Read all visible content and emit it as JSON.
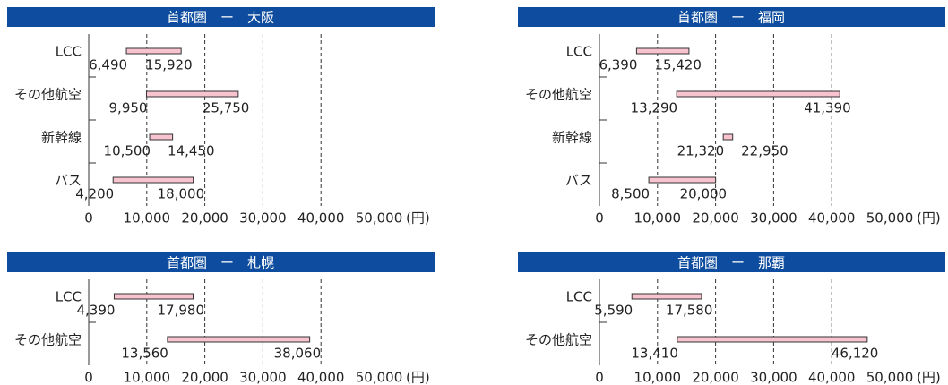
{
  "chart_data": [
    {
      "type": "range",
      "title": "首都圏　ー　大阪",
      "categories": [
        "LCC",
        "その他航空",
        "新幹線",
        "バス"
      ],
      "values": [
        [
          6490,
          15920
        ],
        [
          9950,
          25750
        ],
        [
          10500,
          14450
        ],
        [
          4200,
          18000
        ]
      ],
      "value_labels": [
        [
          "6,490",
          "15,920"
        ],
        [
          "9,950",
          "25,750"
        ],
        [
          "10,500",
          "14,450"
        ],
        [
          "4,200",
          "18,000"
        ]
      ],
      "xlim": [
        0,
        50000
      ],
      "xticks": [
        0,
        {
          "value": 10000,
          "label": "10,000"
        },
        {
          "value": 20000,
          "label": "20,000"
        },
        {
          "value": 30000,
          "label": "30,000"
        },
        {
          "value": 40000,
          "label": "40,000"
        },
        {
          "value": 50000,
          "label": "50,000"
        }
      ],
      "x_label": "(円)",
      "color": "#f7c3cf",
      "grid": true
    },
    {
      "type": "range",
      "title": "首都圏　ー　福岡",
      "categories": [
        "LCC",
        "その他航空",
        "新幹線",
        "バス"
      ],
      "values": [
        [
          6390,
          15420
        ],
        [
          13290,
          41390
        ],
        [
          21320,
          22950
        ],
        [
          8500,
          20000
        ]
      ],
      "value_labels": [
        [
          "6,390",
          "15,420"
        ],
        [
          "13,290",
          "41,390"
        ],
        [
          "21,320",
          "22,950"
        ],
        [
          "8,500",
          "20,000"
        ]
      ],
      "xlim": [
        0,
        50000
      ],
      "xticks": [
        0,
        {
          "value": 10000,
          "label": "10,000"
        },
        {
          "value": 20000,
          "label": "20,000"
        },
        {
          "value": 30000,
          "label": "30,000"
        },
        {
          "value": 40000,
          "label": "40,000"
        },
        {
          "value": 50000,
          "label": "50,000"
        }
      ],
      "x_label": "(円)",
      "color": "#f7c3cf",
      "grid": true
    },
    {
      "type": "range",
      "title": "首都圏　ー　札幌",
      "categories": [
        "LCC",
        "その他航空"
      ],
      "values": [
        [
          4390,
          17980
        ],
        [
          13560,
          38060
        ]
      ],
      "value_labels": [
        [
          "4,390",
          "17,980"
        ],
        [
          "13,560",
          "38,060"
        ]
      ],
      "xlim": [
        0,
        50000
      ],
      "xticks": [
        0,
        {
          "value": 10000,
          "label": "10,000"
        },
        {
          "value": 20000,
          "label": "20,000"
        },
        {
          "value": 30000,
          "label": "30,000"
        },
        {
          "value": 40000,
          "label": "40,000"
        },
        {
          "value": 50000,
          "label": "50,000"
        }
      ],
      "x_label": "(円)",
      "color": "#f7c3cf",
      "grid": true
    },
    {
      "type": "range",
      "title": "首都圏　ー　那覇",
      "categories": [
        "LCC",
        "その他航空"
      ],
      "values": [
        [
          5590,
          17580
        ],
        [
          13410,
          46120
        ]
      ],
      "value_labels": [
        [
          "5,590",
          "17,580"
        ],
        [
          "13,410",
          "46,120"
        ]
      ],
      "xlim": [
        0,
        50000
      ],
      "xticks": [
        0,
        {
          "value": 10000,
          "label": "10,000"
        },
        {
          "value": 20000,
          "label": "20,000"
        },
        {
          "value": 30000,
          "label": "30,000"
        },
        {
          "value": 40000,
          "label": "40,000"
        },
        {
          "value": 50000,
          "label": "50,000"
        }
      ],
      "x_label": "(円)",
      "color": "#f7c3cf",
      "grid": true
    }
  ]
}
